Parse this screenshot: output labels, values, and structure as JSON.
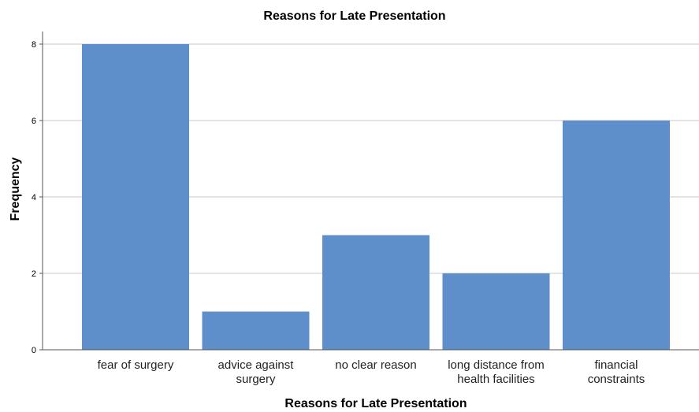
{
  "chart_data": {
    "type": "bar",
    "title": "Reasons for Late Presentation",
    "xlabel": "Reasons for Late Presentation",
    "ylabel": "Frequency",
    "categories": [
      [
        "fear of surgery"
      ],
      [
        "advice against",
        "surgery"
      ],
      [
        "no clear reason"
      ],
      [
        "long distance from",
        "health facilities"
      ],
      [
        "financial",
        "constraints"
      ]
    ],
    "values": [
      8,
      1,
      3,
      2,
      6
    ],
    "yticks": [
      "0",
      "2",
      "4",
      "6",
      "8"
    ],
    "ylim": [
      0,
      8
    ],
    "grid": true,
    "bar_color": "#5f8fcb"
  }
}
